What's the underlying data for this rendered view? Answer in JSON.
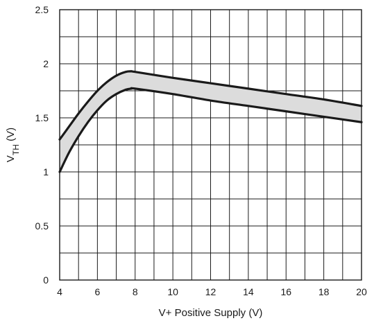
{
  "chart_data": {
    "type": "area",
    "xlabel": "V+ Positive Supply (V)",
    "ylabel": {
      "prefix": "V",
      "subscript": "TH",
      "suffix": " (V)"
    },
    "xlim": [
      4,
      20
    ],
    "ylim": [
      0,
      2.5
    ],
    "x_ticks": [
      4,
      6,
      8,
      10,
      12,
      14,
      16,
      18,
      20
    ],
    "x_tick_labels": [
      "4",
      "6",
      "8",
      "10",
      "12",
      "14",
      "16",
      "18",
      "20"
    ],
    "y_ticks": [
      0,
      0.5,
      1,
      1.5,
      2,
      2.5
    ],
    "y_tick_labels": [
      "0",
      "0.5",
      "1",
      "1.5",
      "2",
      "2.5"
    ],
    "x_minor_gridlines": [
      5,
      7,
      9,
      11,
      13,
      15,
      17,
      19
    ],
    "y_minor_gridlines": [
      0.25,
      0.75,
      1.25,
      1.75,
      2.25
    ],
    "grid": true,
    "series": [
      {
        "role": "upper",
        "x": [
          4.0,
          4.5,
          5.0,
          5.5,
          6.0,
          6.5,
          7.0,
          7.5,
          7.8,
          8.0,
          10,
          12,
          14,
          16,
          18,
          20
        ],
        "values": [
          1.3,
          1.42,
          1.54,
          1.65,
          1.75,
          1.83,
          1.89,
          1.925,
          1.93,
          1.925,
          1.87,
          1.82,
          1.77,
          1.72,
          1.67,
          1.61
        ]
      },
      {
        "role": "lower",
        "x": [
          4.0,
          4.5,
          5.0,
          5.5,
          6.0,
          6.5,
          7.0,
          7.5,
          7.8,
          8.0,
          10,
          12,
          14,
          16,
          18,
          20
        ],
        "values": [
          1.0,
          1.18,
          1.33,
          1.46,
          1.57,
          1.66,
          1.72,
          1.76,
          1.77,
          1.77,
          1.72,
          1.66,
          1.61,
          1.56,
          1.51,
          1.46
        ]
      }
    ],
    "colors": {
      "band_fill": "#dcdcdc",
      "curve": "#1a1a1a",
      "grid": "#1a1a1a"
    }
  }
}
